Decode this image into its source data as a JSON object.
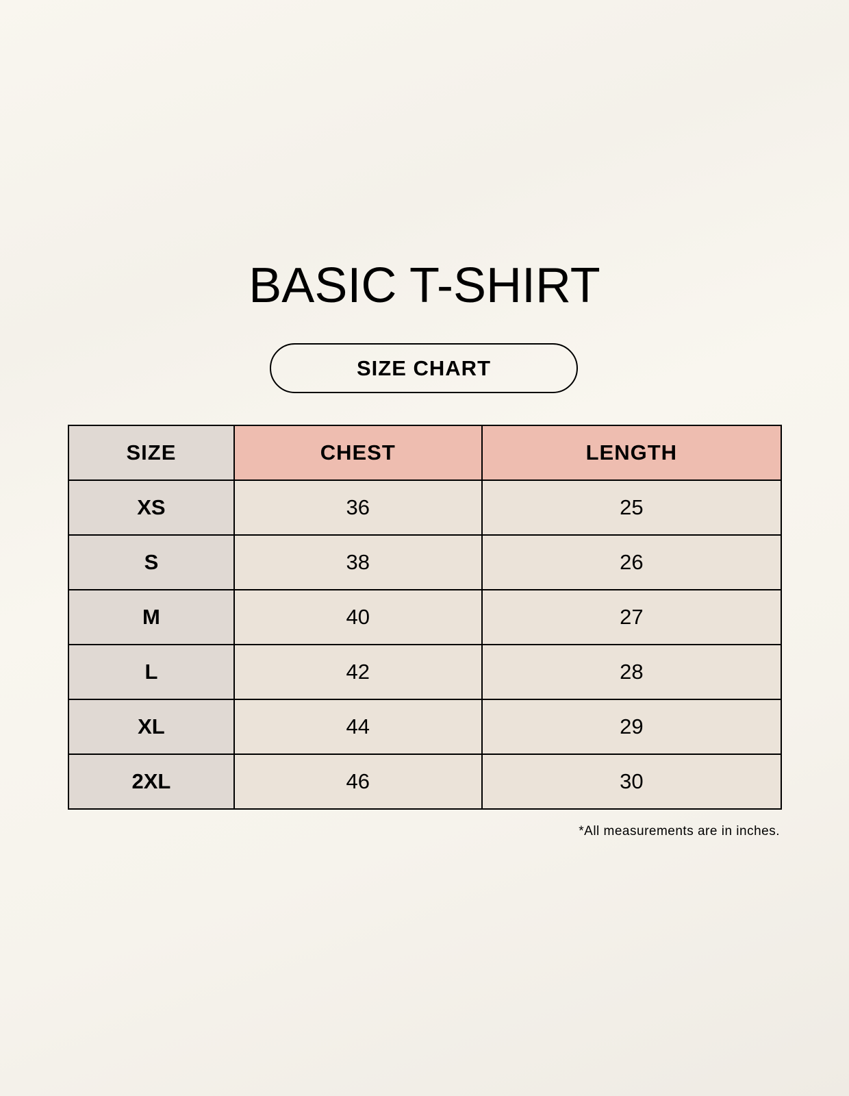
{
  "title": "BASIC T-SHIRT",
  "subtitle": "SIZE CHART",
  "table": {
    "headers": [
      "SIZE",
      "CHEST",
      "LENGTH"
    ],
    "rows": [
      [
        "XS",
        "36",
        "25"
      ],
      [
        "S",
        "38",
        "26"
      ],
      [
        "M",
        "40",
        "27"
      ],
      [
        "L",
        "42",
        "28"
      ],
      [
        "XL",
        "44",
        "29"
      ],
      [
        "2XL",
        "46",
        "30"
      ]
    ]
  },
  "note": "*All measurements are in inches.",
  "colors": {
    "size_column": "#e0d9d3",
    "header_accent": "#eebdb0",
    "cell": "#ebe3d9"
  }
}
